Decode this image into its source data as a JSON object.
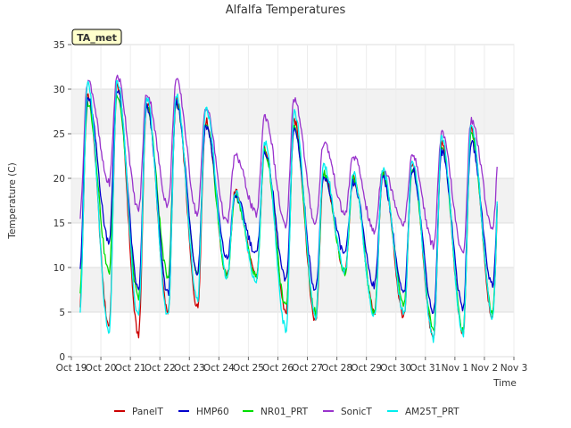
{
  "chart_data": {
    "type": "line",
    "title": "Alfalfa Temperatures",
    "xlabel": "Time",
    "ylabel": "Temperature (C)",
    "badge": "TA_met",
    "ylim": [
      0,
      35
    ],
    "yticks": [
      0,
      5,
      10,
      15,
      20,
      25,
      30,
      35
    ],
    "xlim_days": [
      0,
      15
    ],
    "xtick_labels": [
      "Oct 19",
      "Oct 20",
      "Oct 21",
      "Oct 22",
      "Oct 23",
      "Oct 24",
      "Oct 25",
      "Oct 26",
      "Oct 27",
      "Oct 28",
      "Oct 29",
      "Oct 30",
      "Oct 31",
      "Nov 1",
      "Nov 2",
      "Nov 3"
    ],
    "data_span_days": [
      0.3,
      14.45
    ],
    "grid": true,
    "shaded_bands": [
      [
        5,
        10
      ],
      [
        15,
        20
      ],
      [
        25,
        30
      ]
    ],
    "legend_position": "bottom",
    "series": [
      {
        "name": "PanelT",
        "color": "#cc0000",
        "daily_max": [
          29.5,
          30.5,
          28.5,
          29.0,
          26.5,
          18.5,
          23.5,
          26.5,
          20.5,
          20.0,
          20.5,
          21.5,
          24.0,
          25.5
        ],
        "daily_min": [
          5.5,
          3.5,
          2.5,
          5.0,
          5.5,
          9.0,
          9.0,
          5.0,
          4.0,
          9.5,
          5.0,
          4.5,
          2.0,
          2.5,
          4.5
        ]
      },
      {
        "name": "HMP60",
        "color": "#0000cc",
        "daily_max": [
          29.0,
          30.0,
          28.0,
          28.5,
          26.0,
          18.0,
          23.0,
          25.5,
          20.0,
          19.5,
          20.0,
          21.0,
          23.0,
          24.0
        ],
        "daily_min": [
          10.0,
          13.0,
          7.5,
          7.0,
          9.5,
          11.0,
          11.5,
          8.5,
          7.5,
          11.5,
          8.0,
          7.0,
          5.0,
          5.5,
          8.0
        ]
      },
      {
        "name": "NR01_PRT",
        "color": "#00dd00",
        "daily_max": [
          28.5,
          29.5,
          28.0,
          28.5,
          26.0,
          18.0,
          23.0,
          26.0,
          20.5,
          20.0,
          20.5,
          21.0,
          23.5,
          25.0
        ],
        "daily_min": [
          7.0,
          9.5,
          6.5,
          9.0,
          9.0,
          9.0,
          9.0,
          5.5,
          5.0,
          9.5,
          5.0,
          6.0,
          3.0,
          3.0,
          5.0
        ]
      },
      {
        "name": "SonicT",
        "color": "#9933cc",
        "daily_max": [
          31.0,
          31.5,
          29.5,
          31.0,
          28.0,
          22.5,
          27.0,
          29.0,
          24.0,
          22.5,
          21.0,
          22.5,
          25.0,
          26.5
        ],
        "daily_min": [
          15.5,
          19.5,
          16.5,
          17.0,
          16.0,
          15.0,
          16.0,
          14.5,
          15.0,
          16.0,
          14.0,
          15.0,
          12.5,
          11.5,
          14.5
        ]
      },
      {
        "name": "AM25T_PRT",
        "color": "#00eeee",
        "daily_max": [
          30.5,
          31.0,
          29.0,
          29.5,
          28.0,
          18.5,
          24.0,
          27.5,
          21.5,
          20.5,
          21.0,
          22.0,
          24.5,
          26.0
        ],
        "daily_min": [
          5.0,
          2.5,
          4.5,
          4.5,
          6.5,
          9.0,
          8.5,
          3.0,
          4.5,
          9.5,
          4.5,
          5.0,
          2.0,
          2.5,
          4.5
        ]
      }
    ]
  }
}
